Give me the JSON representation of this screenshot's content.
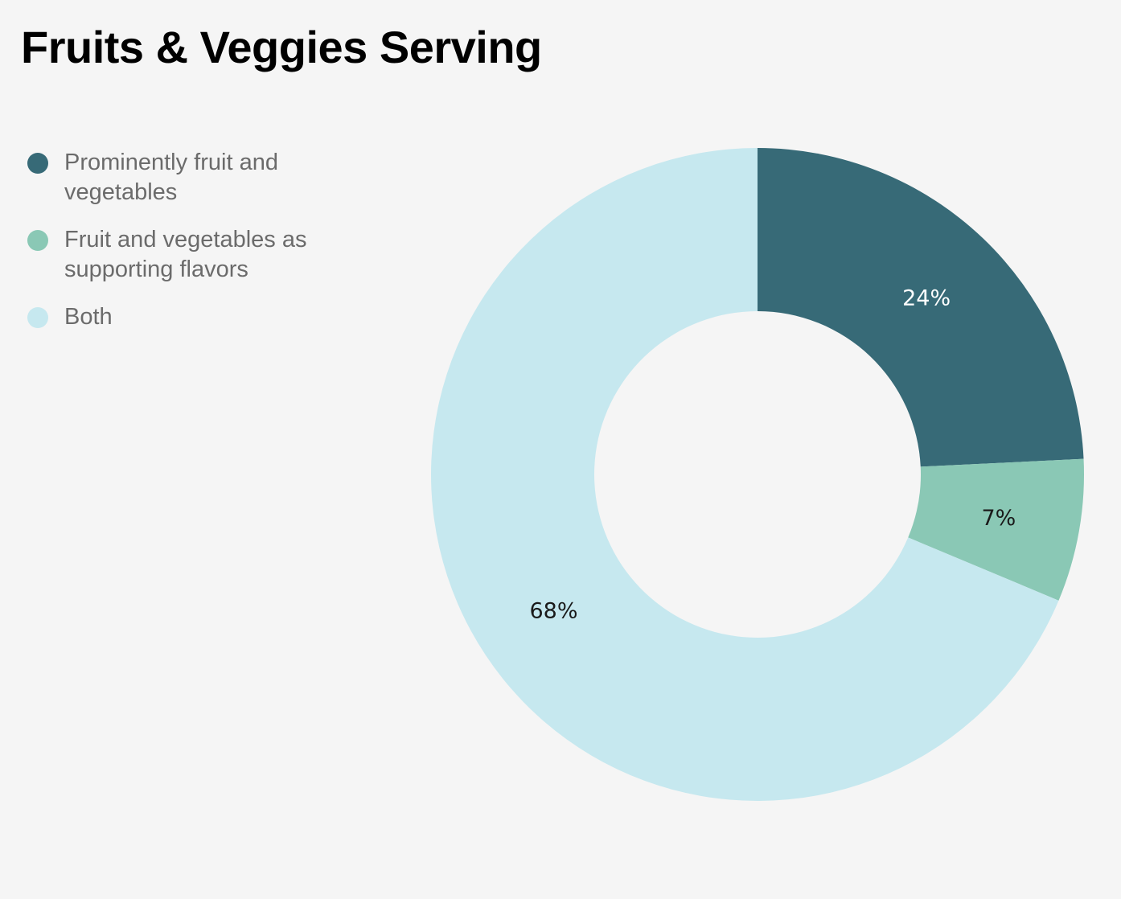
{
  "chart_data": {
    "type": "pie",
    "variant": "donut",
    "title": "Fruits & Veggies Serving",
    "legend_position": "left",
    "categories": [
      "Prominently fruit and vegetables",
      "Fruit and vegetables as supporting flavors",
      "Both"
    ],
    "values": [
      24,
      7,
      68
    ],
    "data_labels": [
      "24%",
      "7%",
      "68%"
    ],
    "colors": [
      "#376a77",
      "#8ac8b5",
      "#c6e8ef"
    ],
    "label_colors": [
      "#ffffff",
      "#1a1a1a",
      "#1a1a1a"
    ]
  }
}
